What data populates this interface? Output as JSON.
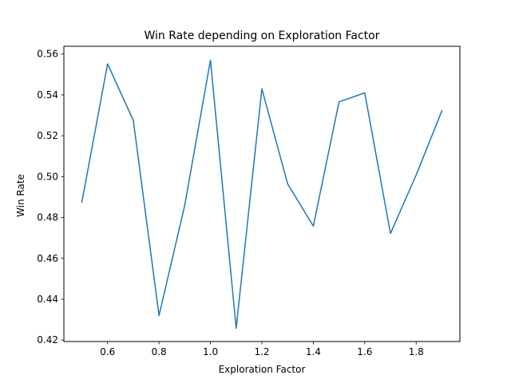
{
  "chart_data": {
    "type": "line",
    "title": "Win Rate depending on Exploration Factor",
    "xlabel": "Exploration Factor",
    "ylabel": "Win Rate",
    "xlim": [
      0.43,
      1.97
    ],
    "ylim": [
      0.4193,
      0.5638
    ],
    "x_ticks": [
      0.6,
      0.8,
      1.0,
      1.2,
      1.4,
      1.6,
      1.8
    ],
    "x_tick_labels": [
      "0.6",
      "0.8",
      "1.0",
      "1.2",
      "1.4",
      "1.6",
      "1.8"
    ],
    "y_ticks": [
      0.42,
      0.44,
      0.46,
      0.48,
      0.5,
      0.52,
      0.54,
      0.56
    ],
    "y_tick_labels": [
      "0.42",
      "0.44",
      "0.46",
      "0.48",
      "0.50",
      "0.52",
      "0.54",
      "0.56"
    ],
    "grid": false,
    "series": [
      {
        "color": "#1f77b4",
        "x": [
          0.5,
          0.6,
          0.7,
          0.8,
          0.9,
          1.0,
          1.1,
          1.2,
          1.3,
          1.4,
          1.5,
          1.6,
          1.7,
          1.8,
          1.9
        ],
        "y": [
          0.4875,
          0.5552,
          0.5275,
          0.432,
          0.486,
          0.557,
          0.4258,
          0.543,
          0.4965,
          0.4758,
          0.5366,
          0.541,
          0.4722,
          0.5008,
          0.5322
        ]
      }
    ]
  }
}
